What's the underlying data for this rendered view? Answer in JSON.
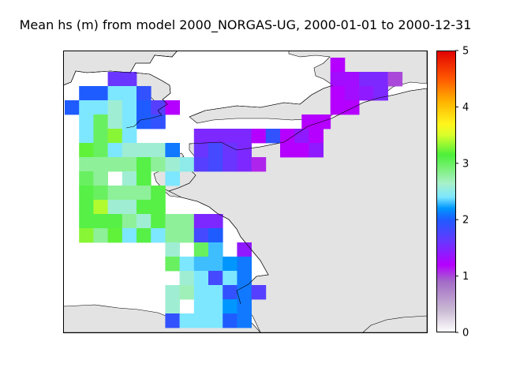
{
  "chart_data": {
    "type": "heatmap",
    "title": "Mean hs (m) from model 2000_NORGAS-UG, 2000-01-01 to 2000-12-31",
    "variable": "hs",
    "unit": "m",
    "colorbar": {
      "min": 0,
      "max": 5,
      "ticks": [
        "0",
        "1",
        "2",
        "3",
        "4",
        "5"
      ],
      "colormap": "gist_ncar-like (white → purple → blue → cyan → green → yellow → orange → red)"
    },
    "grid": {
      "columns": 20,
      "rows": 20,
      "cell_values_m": [
        [
          null,
          null,
          null,
          null,
          null,
          null,
          null,
          null,
          null,
          null,
          null,
          null,
          null,
          null,
          null,
          null,
          null,
          null,
          null,
          null
        ],
        [
          null,
          null,
          null,
          1.6,
          1.6,
          null,
          null,
          null,
          null,
          null,
          null,
          null,
          null,
          null,
          null,
          null,
          null,
          null,
          null,
          null
        ],
        [
          null,
          2.0,
          2.0,
          2.4,
          2.4,
          1.9,
          null,
          null,
          null,
          null,
          null,
          null,
          null,
          null,
          null,
          null,
          null,
          null,
          null,
          null
        ],
        [
          2.0,
          2.4,
          2.4,
          2.6,
          2.4,
          2.0,
          1.7,
          1.2,
          null,
          null,
          null,
          null,
          null,
          null,
          null,
          null,
          null,
          null,
          null,
          null
        ],
        [
          null,
          2.4,
          3.0,
          2.6,
          2.4,
          2.0,
          1.9,
          null,
          null,
          null,
          null,
          null,
          null,
          null,
          null,
          null,
          null,
          null,
          null,
          null
        ],
        [
          null,
          2.4,
          3.0,
          3.3,
          2.4,
          null,
          null,
          null,
          null,
          1.5,
          1.5,
          1.5,
          1.5,
          1.2,
          1.9,
          1.2,
          1.4,
          1.2,
          null,
          null
        ],
        [
          null,
          3.2,
          3.0,
          2.4,
          2.6,
          2.6,
          2.6,
          2.1,
          null,
          1.6,
          1.8,
          1.6,
          1.5,
          null,
          null,
          1.2,
          1.2,
          1.4,
          null,
          null
        ],
        [
          null,
          2.8,
          2.8,
          2.8,
          2.8,
          3.1,
          2.8,
          2.6,
          2.5,
          1.7,
          1.8,
          1.6,
          1.5,
          1.1,
          null,
          null,
          null,
          null,
          null,
          null
        ],
        [
          null,
          3.0,
          2.8,
          null,
          2.6,
          3.1,
          null,
          2.4,
          null,
          null,
          null,
          null,
          null,
          null,
          null,
          null,
          null,
          null,
          null,
          null
        ],
        [
          null,
          3.1,
          3.0,
          2.8,
          2.8,
          2.8,
          3.1,
          null,
          null,
          null,
          null,
          null,
          null,
          null,
          null,
          null,
          null,
          null,
          null,
          null
        ],
        [
          null,
          3.1,
          3.4,
          2.6,
          2.6,
          3.1,
          3.1,
          null,
          null,
          null,
          null,
          null,
          null,
          null,
          null,
          null,
          null,
          null,
          null,
          null
        ],
        [
          null,
          3.1,
          3.1,
          3.1,
          2.8,
          2.6,
          3.1,
          2.8,
          2.8,
          1.5,
          1.5,
          null,
          null,
          null,
          null,
          null,
          null,
          null,
          null,
          null
        ],
        [
          null,
          3.3,
          2.8,
          3.2,
          2.4,
          3.1,
          2.4,
          2.8,
          2.8,
          1.8,
          2.0,
          null,
          null,
          null,
          null,
          null,
          null,
          null,
          null,
          null
        ],
        [
          null,
          null,
          null,
          null,
          null,
          null,
          null,
          2.6,
          null,
          3.0,
          2.3,
          null,
          1.4,
          null,
          null,
          null,
          null,
          null,
          null,
          null
        ],
        [
          null,
          null,
          null,
          null,
          null,
          null,
          null,
          3.0,
          2.4,
          2.3,
          2.3,
          2.2,
          2.1,
          null,
          null,
          null,
          null,
          null,
          null,
          null
        ],
        [
          null,
          null,
          null,
          null,
          null,
          null,
          null,
          null,
          2.6,
          2.4,
          1.8,
          2.4,
          2.1,
          null,
          null,
          null,
          null,
          null,
          null,
          null
        ],
        [
          null,
          null,
          null,
          null,
          null,
          null,
          null,
          2.6,
          2.7,
          2.4,
          2.4,
          1.9,
          2.1,
          1.7,
          null,
          null,
          null,
          null,
          null,
          null
        ],
        [
          null,
          null,
          null,
          null,
          null,
          null,
          null,
          2.6,
          null,
          2.4,
          2.4,
          2.2,
          2.1,
          null,
          null,
          null,
          null,
          null,
          null,
          null
        ],
        [
          null,
          null,
          null,
          null,
          null,
          null,
          null,
          1.9,
          2.4,
          2.4,
          2.4,
          2.0,
          2.1,
          null,
          null,
          null,
          null,
          null,
          null,
          null
        ],
        [
          null,
          null,
          null,
          null,
          null,
          null,
          null,
          null,
          null,
          null,
          null,
          null,
          null,
          null,
          null,
          null,
          null,
          null,
          null,
          null
        ]
      ],
      "extra_cells_east": [
        {
          "row": 0,
          "col": 18.5,
          "value": 1.2
        },
        {
          "row": 1,
          "col": 18.5,
          "value": 1.3
        },
        {
          "row": 1,
          "col": 19.5,
          "value": 1.3
        },
        {
          "row": 1,
          "col": 20.5,
          "value": 1.5
        },
        {
          "row": 1,
          "col": 21.5,
          "value": 1.5
        },
        {
          "row": 1,
          "col": 22.5,
          "value": 1.0
        },
        {
          "row": 2,
          "col": 18.5,
          "value": 1.2
        },
        {
          "row": 2,
          "col": 19.5,
          "value": 1.3
        },
        {
          "row": 2,
          "col": 20.5,
          "value": 1.4
        },
        {
          "row": 2,
          "col": 21.5,
          "value": 1.5
        },
        {
          "row": 3,
          "col": 18.5,
          "value": 1.2
        },
        {
          "row": 3,
          "col": 19.5,
          "value": 1.2
        },
        {
          "row": 4,
          "col": 16.5,
          "value": 1.2
        },
        {
          "row": 4,
          "col": 17.5,
          "value": 1.2
        }
      ]
    },
    "background": {
      "land": "#e3e3e3",
      "sea": "#ffffff",
      "coastline": "#000000"
    },
    "grid_lines": false,
    "legend": "colorbar right"
  }
}
